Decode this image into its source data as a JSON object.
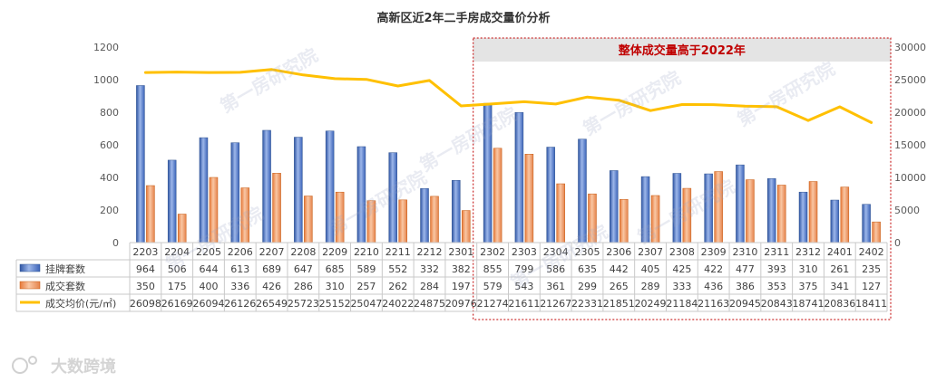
{
  "chart_data": {
    "type": "bar",
    "title": "高新区近2年二手房成交量价分析",
    "categories": [
      "2203",
      "2204",
      "2205",
      "2206",
      "2207",
      "2208",
      "2209",
      "2210",
      "2211",
      "2212",
      "2301",
      "2302",
      "2303",
      "2304",
      "2305",
      "2306",
      "2307",
      "2308",
      "2309",
      "2310",
      "2311",
      "2312",
      "2401",
      "2402"
    ],
    "series": [
      {
        "name": "挂牌套数",
        "type": "bar",
        "axis": "left",
        "color": "#4472c4",
        "values": [
          964,
          506,
          644,
          613,
          689,
          647,
          685,
          589,
          552,
          332,
          382,
          855,
          799,
          586,
          635,
          442,
          405,
          425,
          422,
          477,
          393,
          310,
          261,
          235
        ]
      },
      {
        "name": "成交套数",
        "type": "bar",
        "axis": "left",
        "color": "#ed7d31",
        "values": [
          350,
          175,
          400,
          336,
          426,
          286,
          310,
          257,
          262,
          284,
          197,
          579,
          543,
          361,
          299,
          265,
          289,
          333,
          436,
          386,
          353,
          375,
          341,
          127
        ]
      },
      {
        "name": "成交均价(元/㎡)",
        "type": "line",
        "axis": "right",
        "color": "#ffc000",
        "values": [
          26098,
          26169,
          26094,
          26126,
          26549,
          25723,
          25152,
          25047,
          24022,
          24875,
          20976,
          21274,
          21611,
          21267,
          22331,
          21851,
          20249,
          21184,
          21163,
          20945,
          20843,
          18741,
          20836,
          18411
        ]
      }
    ],
    "y_left": {
      "min": 0,
      "max": 1200,
      "ticks": [
        0,
        200,
        400,
        600,
        800,
        1000,
        1200
      ]
    },
    "y_right": {
      "min": 0,
      "max": 30000,
      "ticks": [
        0,
        5000,
        10000,
        15000,
        20000,
        25000,
        30000
      ]
    },
    "grid": false,
    "legend": "table-below",
    "annotation": {
      "text": "整体成交量高于2022年",
      "color": "#c00000",
      "range_start": "2302",
      "range_end": "2402"
    }
  },
  "watermark": "第一房研究院",
  "brand": "大数跨境"
}
